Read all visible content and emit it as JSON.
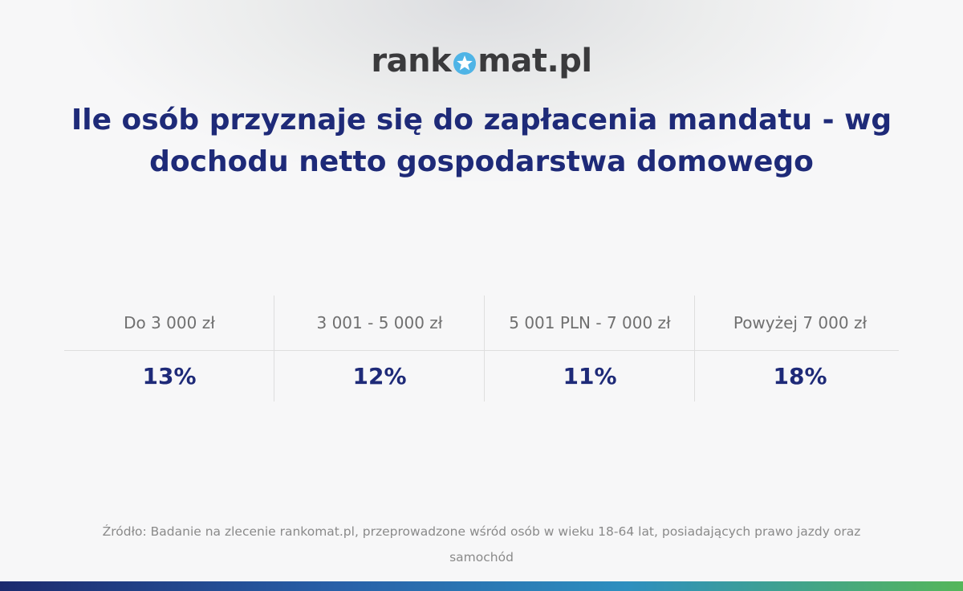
{
  "logo": {
    "part1": "rank",
    "part2": "mat.pl",
    "star_icon": "star-icon",
    "colors": {
      "text": "#3a3a3c",
      "star_circle": "#4fb4e6",
      "star": "#ffffff"
    }
  },
  "title": "Ile osób przyznaje się do zapłacenia mandatu - wg dochodu netto gospodarstwa domowego",
  "chart_data": {
    "type": "table",
    "categories": [
      "Do 3 000 zł",
      "3 001 - 5 000 zł",
      "5 001 PLN - 7 000 zł",
      "Powyżej 7 000 zł"
    ],
    "values": [
      13,
      12,
      11,
      18
    ],
    "value_labels": [
      "13%",
      "12%",
      "11%",
      "18%"
    ],
    "unit": "%"
  },
  "source": "Źródło: Badanie na zlecenie rankomat.pl, przeprowadzone wśród osób w wieku 18-64 lat, posiadających prawo jazdy oraz samochód",
  "colors": {
    "title": "#1e2a78",
    "label": "#707070",
    "bar_gradient": [
      "#1c2a6e",
      "#2860a8",
      "#2d8fbf",
      "#55b65a"
    ]
  }
}
